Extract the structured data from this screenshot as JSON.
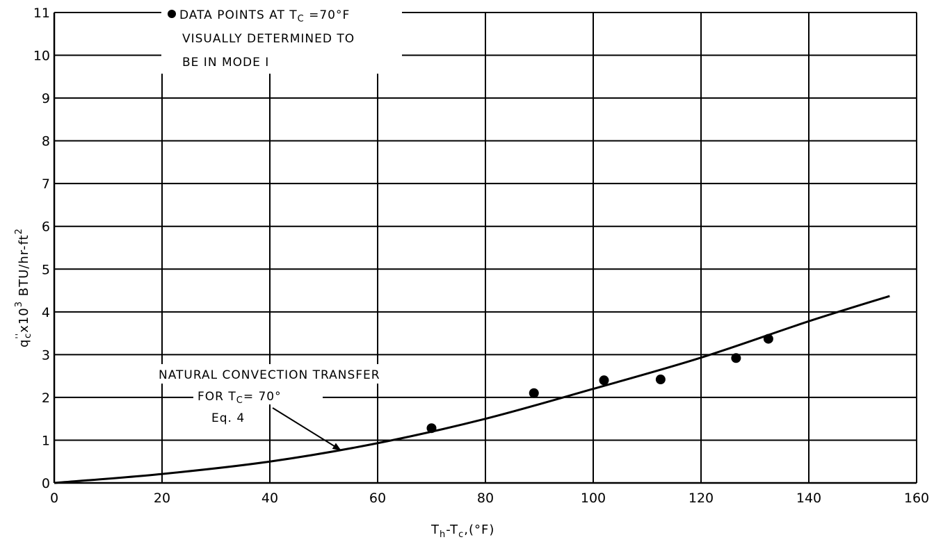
{
  "chart_data": {
    "type": "scatter",
    "title": "",
    "xlabel": "T_h - T_c, (°F)",
    "xlabel_parts": {
      "main": "T",
      "sub_h": "h",
      "dash": "-T",
      "sub_c": "c",
      "unit": ",(°F)"
    },
    "ylabel": "q''_c x 10^3 BTU/hr-ft^2",
    "ylabel_parts": {
      "q": "q",
      "primes": "''",
      "sub_c": "c",
      "times": "x10",
      "exp3": "3",
      "unit": " BTU/hr-ft",
      "exp2": "2"
    },
    "xlim": [
      0,
      160
    ],
    "ylim": [
      0,
      11
    ],
    "x_ticks": [
      0,
      20,
      40,
      60,
      80,
      100,
      120,
      140,
      160
    ],
    "y_ticks": [
      0,
      1,
      2,
      3,
      4,
      5,
      6,
      7,
      8,
      9,
      10,
      11
    ],
    "x_tick_labels": [
      "0",
      "20",
      "40",
      "60",
      "80",
      "100",
      "120",
      "140",
      "160"
    ],
    "y_tick_labels": [
      "0",
      "1",
      "2",
      "3",
      "4",
      "5",
      "6",
      "7",
      "8",
      "9",
      "10",
      "11"
    ],
    "grid": true,
    "series": [
      {
        "name": "DATA POINTS AT Tc = 70°F VISUALLY DETERMINED TO BE IN MODE I",
        "type": "scatter",
        "points": [
          {
            "x": 70,
            "y": 1.28
          },
          {
            "x": 89,
            "y": 2.1
          },
          {
            "x": 102,
            "y": 2.4
          },
          {
            "x": 112.5,
            "y": 2.42
          },
          {
            "x": 126.5,
            "y": 2.92
          },
          {
            "x": 132.5,
            "y": 3.37
          }
        ]
      },
      {
        "name": "NATURAL CONVECTION TRANSFER FOR Tc = 70° Eq. 4",
        "type": "line",
        "points": [
          {
            "x": 0,
            "y": 0
          },
          {
            "x": 20,
            "y": 0.21
          },
          {
            "x": 40,
            "y": 0.5
          },
          {
            "x": 60,
            "y": 0.93
          },
          {
            "x": 80,
            "y": 1.5
          },
          {
            "x": 100,
            "y": 2.2
          },
          {
            "x": 120,
            "y": 2.93
          },
          {
            "x": 140,
            "y": 3.78
          },
          {
            "x": 155,
            "y": 4.37
          }
        ]
      }
    ],
    "legend": {
      "placement": "top-left",
      "lines": [
        "DATA POINTS AT Tc = 70°F",
        "VISUALLY DETERMINED TO",
        "BE IN MODE I"
      ]
    },
    "annotation": {
      "lines": [
        "NATURAL CONVECTION TRANSFER",
        "FOR Tc= 70°",
        "Eq. 4"
      ],
      "arrow_to": {
        "x": 53,
        "y": 0.78
      }
    }
  }
}
